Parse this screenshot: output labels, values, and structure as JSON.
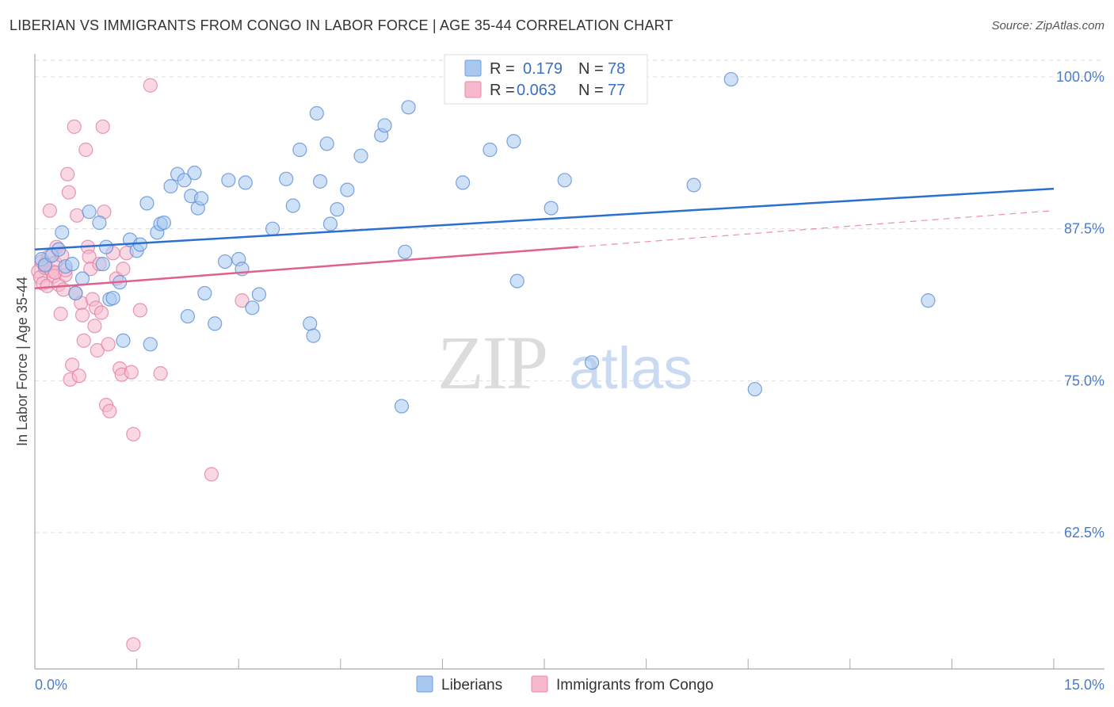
{
  "title": "LIBERIAN VS IMMIGRANTS FROM CONGO IN LABOR FORCE | AGE 35-44 CORRELATION CHART",
  "source": "Source: ZipAtlas.com",
  "watermark": {
    "zip": "ZIP",
    "atlas": "atlas"
  },
  "legend": {
    "r_label": "R =",
    "n_label": "N =",
    "rows": [
      {
        "r": "0.179",
        "n": "78",
        "color": "#a8c8f0",
        "stroke": "#6a9fe0"
      },
      {
        "r": "0.063",
        "n": "77",
        "color": "#f6b8cc",
        "stroke": "#e889a9"
      }
    ]
  },
  "colors": {
    "blue_fill": "#a8c8f0",
    "blue_stroke": "#5b8fd6",
    "blue_line": "#2b6fd0",
    "pink_fill": "#f6b8cc",
    "pink_stroke": "#e07fa0",
    "pink_line": "#e0608e",
    "grid": "#dddddd",
    "axis": "#aaaaaa"
  },
  "chart_data": {
    "type": "scatter",
    "xlabel": "",
    "ylabel": "In Labor Force | Age 35-44",
    "xlim": [
      0,
      15
    ],
    "ylim": [
      50,
      102
    ],
    "x_tick_labels": [
      "0.0%",
      "15.0%"
    ],
    "y_ticks": [
      62.5,
      75.0,
      87.5,
      100.0
    ],
    "y_tick_labels": [
      "62.5%",
      "75.0%",
      "87.5%",
      "100.0%"
    ],
    "grid": true,
    "series": [
      {
        "name": "Liberians",
        "r": 0.179,
        "n": 78,
        "trend": {
          "x": [
            0,
            15
          ],
          "y": [
            85.8,
            90.8
          ],
          "dashed_from": null
        },
        "points": [
          [
            0.1,
            85.0
          ],
          [
            0.15,
            84.5
          ],
          [
            0.25,
            85.3
          ],
          [
            0.35,
            85.8
          ],
          [
            0.4,
            87.2
          ],
          [
            0.45,
            84.4
          ],
          [
            0.55,
            84.6
          ],
          [
            0.6,
            82.2
          ],
          [
            0.7,
            83.4
          ],
          [
            0.8,
            88.9
          ],
          [
            0.95,
            88.0
          ],
          [
            1.0,
            84.6
          ],
          [
            1.05,
            86.0
          ],
          [
            1.1,
            81.7
          ],
          [
            1.15,
            81.8
          ],
          [
            1.25,
            83.1
          ],
          [
            1.3,
            78.3
          ],
          [
            1.4,
            86.6
          ],
          [
            1.5,
            85.7
          ],
          [
            1.55,
            86.2
          ],
          [
            1.65,
            89.6
          ],
          [
            1.7,
            78.0
          ],
          [
            1.8,
            87.2
          ],
          [
            1.85,
            87.9
          ],
          [
            1.9,
            88.0
          ],
          [
            2.0,
            91.0
          ],
          [
            2.1,
            92.0
          ],
          [
            2.2,
            91.5
          ],
          [
            2.25,
            80.3
          ],
          [
            2.3,
            90.2
          ],
          [
            2.35,
            92.1
          ],
          [
            2.4,
            89.2
          ],
          [
            2.45,
            90.0
          ],
          [
            2.5,
            82.2
          ],
          [
            2.65,
            79.7
          ],
          [
            2.8,
            84.8
          ],
          [
            2.85,
            91.5
          ],
          [
            3.0,
            85.0
          ],
          [
            3.05,
            84.2
          ],
          [
            3.1,
            91.3
          ],
          [
            3.2,
            81.0
          ],
          [
            3.3,
            82.1
          ],
          [
            3.5,
            87.5
          ],
          [
            3.7,
            91.6
          ],
          [
            3.8,
            89.4
          ],
          [
            3.9,
            94.0
          ],
          [
            4.05,
            79.7
          ],
          [
            4.1,
            78.7
          ],
          [
            4.15,
            97.0
          ],
          [
            4.2,
            91.4
          ],
          [
            4.3,
            94.5
          ],
          [
            4.35,
            87.9
          ],
          [
            4.45,
            89.1
          ],
          [
            4.6,
            90.7
          ],
          [
            4.8,
            93.5
          ],
          [
            5.1,
            95.2
          ],
          [
            5.15,
            96.0
          ],
          [
            5.4,
            72.9
          ],
          [
            5.45,
            85.6
          ],
          [
            5.5,
            97.5
          ],
          [
            6.3,
            91.3
          ],
          [
            6.7,
            94.0
          ],
          [
            7.05,
            94.7
          ],
          [
            7.1,
            83.2
          ],
          [
            7.6,
            89.2
          ],
          [
            7.8,
            91.5
          ],
          [
            8.2,
            76.5
          ],
          [
            9.7,
            91.1
          ],
          [
            10.25,
            99.8
          ],
          [
            10.6,
            74.3
          ],
          [
            13.15,
            81.6
          ]
        ]
      },
      {
        "name": "Immigrants from Congo",
        "r": 0.063,
        "n": 77,
        "trend": {
          "x": [
            0,
            15
          ],
          "y": [
            82.6,
            89.0
          ],
          "dashed_from": 8.0
        },
        "points": [
          [
            0.05,
            84.0
          ],
          [
            0.08,
            83.5
          ],
          [
            0.1,
            84.8
          ],
          [
            0.12,
            83.0
          ],
          [
            0.15,
            84.3
          ],
          [
            0.18,
            82.8
          ],
          [
            0.2,
            85.2
          ],
          [
            0.22,
            89.0
          ],
          [
            0.25,
            84.0
          ],
          [
            0.28,
            83.6
          ],
          [
            0.3,
            84.7
          ],
          [
            0.32,
            86.0
          ],
          [
            0.35,
            82.9
          ],
          [
            0.38,
            80.5
          ],
          [
            0.4,
            85.3
          ],
          [
            0.42,
            82.5
          ],
          [
            0.45,
            83.7
          ],
          [
            0.48,
            92.0
          ],
          [
            0.5,
            90.5
          ],
          [
            0.52,
            75.1
          ],
          [
            0.55,
            76.3
          ],
          [
            0.58,
            95.9
          ],
          [
            0.6,
            82.2
          ],
          [
            0.62,
            88.6
          ],
          [
            0.65,
            75.4
          ],
          [
            0.68,
            81.4
          ],
          [
            0.7,
            80.4
          ],
          [
            0.72,
            78.3
          ],
          [
            0.75,
            94.0
          ],
          [
            0.78,
            86.0
          ],
          [
            0.8,
            85.2
          ],
          [
            0.82,
            84.2
          ],
          [
            0.85,
            81.7
          ],
          [
            0.88,
            79.5
          ],
          [
            0.9,
            81.0
          ],
          [
            0.92,
            77.5
          ],
          [
            0.95,
            84.6
          ],
          [
            0.98,
            80.6
          ],
          [
            1.0,
            95.9
          ],
          [
            1.02,
            88.9
          ],
          [
            1.05,
            73.0
          ],
          [
            1.08,
            78.0
          ],
          [
            1.1,
            72.5
          ],
          [
            1.15,
            85.5
          ],
          [
            1.2,
            83.4
          ],
          [
            1.25,
            76.0
          ],
          [
            1.28,
            75.5
          ],
          [
            1.3,
            84.2
          ],
          [
            1.35,
            85.5
          ],
          [
            1.42,
            75.7
          ],
          [
            1.45,
            70.6
          ],
          [
            1.55,
            80.8
          ],
          [
            1.7,
            99.3
          ],
          [
            1.85,
            75.6
          ],
          [
            2.6,
            67.3
          ],
          [
            3.05,
            81.6
          ],
          [
            1.45,
            53.3
          ],
          [
            0.15,
            84.6
          ],
          [
            0.3,
            83.9
          ],
          [
            0.45,
            84.1
          ]
        ]
      }
    ]
  },
  "bottom_legend": [
    "Liberians",
    "Immigrants from Congo"
  ]
}
